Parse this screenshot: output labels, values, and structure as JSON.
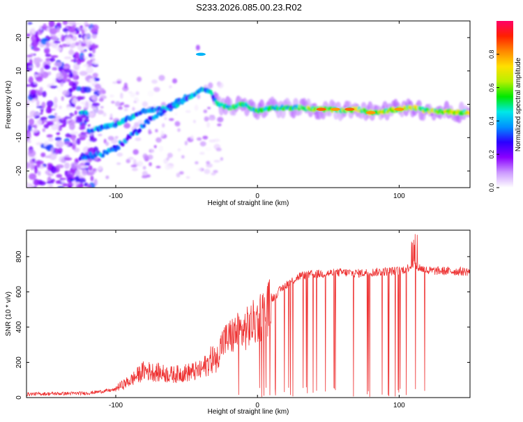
{
  "title": "S233.2026.085.00.23.R02",
  "chart_data": [
    {
      "type": "heatmap",
      "title": "S233.2026.085.00.23.R02",
      "xlabel": "Height of straight line (km)",
      "ylabel": "Frequency (Hz)",
      "xlim": [
        -163,
        150
      ],
      "ylim": [
        -25,
        25
      ],
      "x_ticks": [
        -100,
        0,
        100
      ],
      "y_ticks": [
        20,
        10,
        0,
        -10,
        -20
      ],
      "colorbar": {
        "label": "Normalized spectral amplitude",
        "range": [
          0,
          1
        ],
        "ticks": [
          "0.0",
          "0.2",
          "0.4",
          "0.6",
          "0.8"
        ],
        "ticks_values": [
          0.0,
          0.2,
          0.4,
          0.6,
          0.8
        ],
        "colors": [
          "#ffffff",
          "#cc99ff",
          "#8a00ff",
          "#2a00ff",
          "#0090ff",
          "#00e8e8",
          "#00e800",
          "#b8f000",
          "#ffe000",
          "#ff8800",
          "#ff2000",
          "#ff0066"
        ]
      },
      "ridge": {
        "description_points": [
          [
            -120,
            -8
          ],
          [
            -100,
            -6
          ],
          [
            -80,
            -2
          ],
          [
            -60,
            -1
          ],
          [
            -45,
            3
          ],
          [
            -38,
            4.5
          ],
          [
            -33,
            3.5
          ],
          [
            -28,
            0
          ],
          [
            -20,
            -1
          ],
          [
            -10,
            0
          ],
          [
            0,
            -2
          ],
          [
            10,
            -1
          ],
          [
            20,
            -1
          ],
          [
            30,
            -1
          ],
          [
            40,
            -1.5
          ],
          [
            50,
            -1.5
          ],
          [
            60,
            -2
          ],
          [
            70,
            -1.5
          ],
          [
            80,
            -2.5
          ],
          [
            90,
            -2
          ],
          [
            100,
            -1.5
          ],
          [
            110,
            -1
          ],
          [
            120,
            -2
          ],
          [
            150,
            -2.5
          ]
        ],
        "lower_branch": [
          [
            -125,
            -16
          ],
          [
            -110,
            -15
          ],
          [
            -100,
            -13
          ],
          [
            -90,
            -10
          ],
          [
            -80,
            -6
          ],
          [
            -70,
            -3
          ],
          [
            -60,
            0
          ],
          [
            -50,
            2
          ]
        ],
        "peak_values": [
          {
            "x": -40,
            "y": 15,
            "amp": 0.4
          },
          {
            "x": 45,
            "y": -1.5,
            "amp": 0.85
          },
          {
            "x": 55,
            "y": -1.5,
            "amp": 0.8
          },
          {
            "x": 65,
            "y": -1.5,
            "amp": 0.85
          },
          {
            "x": 80,
            "y": -2.5,
            "amp": 0.8
          },
          {
            "x": 100,
            "y": -1.5,
            "amp": 0.8
          }
        ]
      }
    },
    {
      "type": "line",
      "xlabel": "Height of straight line (km)",
      "ylabel": "SNR (10 * v/v)",
      "xlim": [
        -163,
        150
      ],
      "ylim": [
        0,
        950
      ],
      "x_ticks": [
        -100,
        0,
        100
      ],
      "y_ticks": [
        0,
        200,
        400,
        600,
        800
      ],
      "series": [
        {
          "name": "SNR",
          "color": "#ee3333",
          "trend_x": [
            -163,
            -120,
            -100,
            -90,
            -80,
            -70,
            -60,
            -50,
            -40,
            -30,
            -25,
            -20,
            -15,
            -10,
            0,
            5,
            10,
            20,
            30,
            40,
            50,
            60,
            70,
            80,
            90,
            100,
            105,
            110,
            115,
            120,
            150
          ],
          "trend_y": [
            20,
            25,
            45,
            80,
            130,
            120,
            110,
            120,
            130,
            200,
            330,
            360,
            390,
            400,
            470,
            520,
            560,
            640,
            690,
            700,
            705,
            710,
            705,
            710,
            715,
            720,
            730,
            760,
            735,
            720,
            715
          ]
        }
      ]
    }
  ]
}
